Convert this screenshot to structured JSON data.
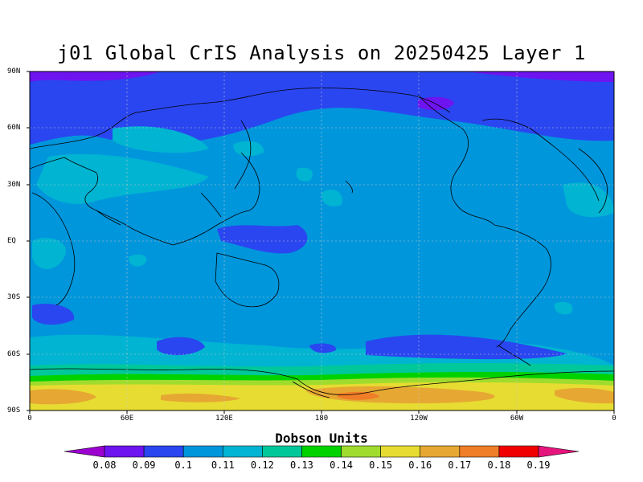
{
  "title": "j01 Global CrIS Analysis on 20250425 Layer 1",
  "lat_ticks": [
    "90N",
    "60N",
    "30N",
    "EQ",
    "30S",
    "60S",
    "90S"
  ],
  "lon_ticks": [
    "0",
    "60E",
    "120E",
    "180",
    "120W",
    "60W",
    "0"
  ],
  "colorbar": {
    "label": "Dobson Units",
    "tick_labels": [
      "0.08",
      "0.09",
      "0.1",
      "0.11",
      "0.12",
      "0.13",
      "0.14",
      "0.15",
      "0.16",
      "0.17",
      "0.18",
      "0.19"
    ],
    "colors": [
      "#9b00d0",
      "#6e14f0",
      "#2a46f0",
      "#0096dc",
      "#00b4d2",
      "#00c89b",
      "#00d200",
      "#a0dc2d",
      "#e6dc32",
      "#e6a832",
      "#f07d28",
      "#f00000",
      "#e6147d"
    ]
  },
  "colors": {
    "background": "#0096dc",
    "polar_band_north": "#2a46f0",
    "deep_north": "#6e14f0",
    "antarctic_1": "#00b4d2",
    "antarctic_2": "#00c89b",
    "antarctic_3": "#00d200",
    "antarctic_4": "#a0dc2d",
    "antarctic_5": "#e6dc32",
    "antarctic_6": "#e6a832"
  }
}
